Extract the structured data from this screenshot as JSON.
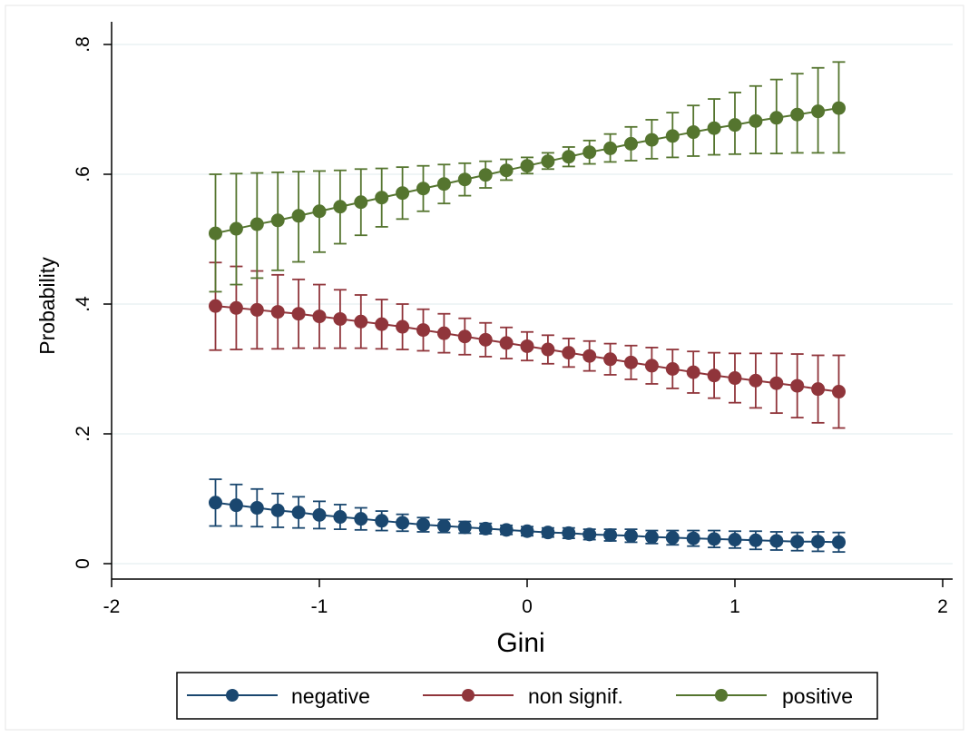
{
  "chart_data": {
    "type": "scatter",
    "title": "",
    "xlabel": "Gini",
    "ylabel": "Probability",
    "xlim": [
      -2,
      2
    ],
    "ylim": [
      0,
      0.8
    ],
    "xticks": [
      -2,
      -1,
      0,
      1,
      2
    ],
    "xtick_labels": [
      "-2",
      "-1",
      "0",
      "1",
      "2"
    ],
    "yticks": [
      0,
      0.2,
      0.4,
      0.6,
      0.8
    ],
    "ytick_labels": [
      "0",
      ".2",
      ".4",
      ".6",
      ".8"
    ],
    "grid": "horizontal",
    "legend_position": "bottom",
    "x": [
      -1.5,
      -1.4,
      -1.3,
      -1.2,
      -1.1,
      -1.0,
      -0.9,
      -0.8,
      -0.7,
      -0.6,
      -0.5,
      -0.4,
      -0.3,
      -0.2,
      -0.1,
      0.0,
      0.1,
      0.2,
      0.3,
      0.4,
      0.5,
      0.6,
      0.7,
      0.8,
      0.9,
      1.0,
      1.1,
      1.2,
      1.3,
      1.4,
      1.5
    ],
    "series": [
      {
        "name": "negative",
        "color": "#1a476f",
        "values": [
          0.094,
          0.09,
          0.086,
          0.082,
          0.079,
          0.075,
          0.072,
          0.069,
          0.066,
          0.063,
          0.06,
          0.058,
          0.056,
          0.054,
          0.052,
          0.05,
          0.048,
          0.047,
          0.045,
          0.044,
          0.043,
          0.041,
          0.04,
          0.039,
          0.038,
          0.037,
          0.036,
          0.035,
          0.034,
          0.034,
          0.033
        ],
        "lower": [
          0.058,
          0.058,
          0.057,
          0.056,
          0.055,
          0.054,
          0.053,
          0.052,
          0.051,
          0.05,
          0.049,
          0.048,
          0.047,
          0.046,
          0.045,
          0.043,
          0.041,
          0.039,
          0.037,
          0.035,
          0.033,
          0.031,
          0.029,
          0.027,
          0.025,
          0.024,
          0.022,
          0.021,
          0.02,
          0.019,
          0.018
        ],
        "upper": [
          0.13,
          0.122,
          0.115,
          0.108,
          0.103,
          0.096,
          0.091,
          0.086,
          0.081,
          0.076,
          0.071,
          0.068,
          0.065,
          0.062,
          0.059,
          0.057,
          0.055,
          0.055,
          0.053,
          0.053,
          0.053,
          0.051,
          0.051,
          0.051,
          0.051,
          0.05,
          0.05,
          0.049,
          0.048,
          0.049,
          0.048
        ]
      },
      {
        "name": "non signif.",
        "color": "#90353b",
        "values": [
          0.397,
          0.394,
          0.391,
          0.388,
          0.385,
          0.381,
          0.377,
          0.373,
          0.369,
          0.365,
          0.36,
          0.355,
          0.35,
          0.345,
          0.34,
          0.335,
          0.33,
          0.325,
          0.32,
          0.315,
          0.31,
          0.305,
          0.3,
          0.295,
          0.29,
          0.286,
          0.282,
          0.278,
          0.274,
          0.269,
          0.265
        ],
        "lower": [
          0.329,
          0.33,
          0.331,
          0.331,
          0.332,
          0.332,
          0.332,
          0.332,
          0.331,
          0.33,
          0.328,
          0.325,
          0.322,
          0.319,
          0.316,
          0.313,
          0.308,
          0.303,
          0.297,
          0.291,
          0.284,
          0.277,
          0.27,
          0.263,
          0.255,
          0.248,
          0.24,
          0.232,
          0.225,
          0.217,
          0.209
        ],
        "upper": [
          0.464,
          0.458,
          0.451,
          0.445,
          0.438,
          0.43,
          0.422,
          0.414,
          0.407,
          0.4,
          0.392,
          0.385,
          0.378,
          0.371,
          0.364,
          0.357,
          0.352,
          0.347,
          0.343,
          0.339,
          0.336,
          0.333,
          0.33,
          0.327,
          0.325,
          0.324,
          0.324,
          0.324,
          0.323,
          0.321,
          0.321
        ]
      },
      {
        "name": "positive",
        "color": "#55752f",
        "values": [
          0.509,
          0.516,
          0.523,
          0.529,
          0.536,
          0.543,
          0.55,
          0.557,
          0.564,
          0.571,
          0.578,
          0.585,
          0.592,
          0.599,
          0.606,
          0.613,
          0.62,
          0.627,
          0.634,
          0.64,
          0.647,
          0.653,
          0.659,
          0.665,
          0.671,
          0.676,
          0.682,
          0.687,
          0.692,
          0.697,
          0.702
        ],
        "lower": [
          0.419,
          0.43,
          0.44,
          0.452,
          0.465,
          0.48,
          0.493,
          0.506,
          0.519,
          0.531,
          0.543,
          0.555,
          0.567,
          0.579,
          0.591,
          0.601,
          0.608,
          0.612,
          0.616,
          0.619,
          0.621,
          0.624,
          0.626,
          0.628,
          0.63,
          0.631,
          0.632,
          0.632,
          0.633,
          0.633,
          0.633
        ],
        "upper": [
          0.6,
          0.601,
          0.602,
          0.603,
          0.604,
          0.605,
          0.606,
          0.608,
          0.609,
          0.611,
          0.613,
          0.615,
          0.617,
          0.62,
          0.623,
          0.626,
          0.633,
          0.642,
          0.652,
          0.662,
          0.673,
          0.684,
          0.695,
          0.706,
          0.716,
          0.726,
          0.736,
          0.746,
          0.755,
          0.764,
          0.773
        ]
      }
    ]
  }
}
